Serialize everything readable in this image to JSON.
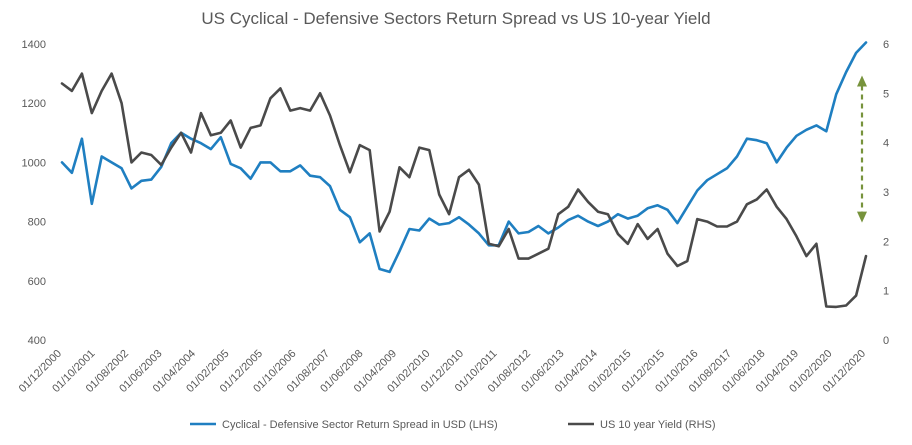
{
  "chart_data": {
    "type": "line",
    "title": "US Cyclical - Defensive Sectors Return Spread vs US 10-year Yield",
    "x_ticks": [
      "01/12/2000",
      "01/10/2001",
      "01/08/2002",
      "01/06/2003",
      "01/04/2004",
      "01/02/2005",
      "01/12/2005",
      "01/10/2006",
      "01/08/2007",
      "01/06/2008",
      "01/04/2009",
      "01/02/2010",
      "01/12/2010",
      "01/10/2011",
      "01/08/2012",
      "01/06/2013",
      "01/04/2014",
      "01/02/2015",
      "01/12/2015",
      "01/10/2016",
      "01/08/2017",
      "01/06/2018",
      "01/04/2019",
      "01/02/2020",
      "01/12/2020"
    ],
    "y_left": {
      "min": 400,
      "max": 1400,
      "ticks": [
        "400",
        "600",
        "800",
        "1000",
        "1200",
        "1400"
      ]
    },
    "y_right": {
      "min": 0,
      "max": 6,
      "ticks": [
        "0",
        "1",
        "2",
        "3",
        "4",
        "5",
        "6"
      ]
    },
    "series": [
      {
        "name": "Cyclical - Defensive Sector Return Spread in USD (LHS)",
        "axis": "left",
        "color": "#1f7fc1",
        "values": [
          1000,
          965,
          1080,
          860,
          1020,
          1000,
          980,
          912,
          938,
          942,
          985,
          1065,
          1100,
          1080,
          1065,
          1045,
          1085,
          995,
          980,
          945,
          1000,
          1000,
          970,
          970,
          990,
          955,
          950,
          920,
          840,
          815,
          730,
          760,
          640,
          630,
          700,
          775,
          770,
          810,
          790,
          795,
          815,
          790,
          760,
          720,
          720,
          800,
          760,
          765,
          785,
          760,
          780,
          805,
          820,
          800,
          785,
          800,
          825,
          810,
          820,
          845,
          855,
          840,
          795,
          850,
          905,
          940,
          960,
          980,
          1020,
          1080,
          1075,
          1065,
          1000,
          1050,
          1090,
          1110,
          1125,
          1105,
          1230,
          1305,
          1370,
          1405
        ]
      },
      {
        "name": "US 10 year Yield (RHS)",
        "axis": "right",
        "color": "#4a4a4a",
        "values": [
          5.2,
          5.05,
          5.4,
          4.6,
          5.05,
          5.4,
          4.8,
          3.6,
          3.8,
          3.75,
          3.55,
          3.9,
          4.2,
          3.8,
          4.6,
          4.15,
          4.2,
          4.45,
          3.9,
          4.3,
          4.35,
          4.9,
          5.1,
          4.65,
          4.7,
          4.65,
          5.0,
          4.55,
          3.95,
          3.4,
          3.95,
          3.85,
          2.2,
          2.6,
          3.5,
          3.3,
          3.9,
          3.85,
          2.95,
          2.55,
          3.3,
          3.45,
          3.15,
          1.95,
          1.9,
          2.25,
          1.65,
          1.65,
          1.75,
          1.85,
          2.55,
          2.7,
          3.05,
          2.8,
          2.6,
          2.55,
          2.15,
          1.95,
          2.35,
          2.05,
          2.25,
          1.75,
          1.5,
          1.6,
          2.45,
          2.4,
          2.3,
          2.3,
          2.4,
          2.75,
          2.85,
          3.05,
          2.7,
          2.45,
          2.1,
          1.7,
          1.95,
          0.68,
          0.67,
          0.7,
          0.9,
          1.7
        ]
      }
    ],
    "legend": {
      "position": "bottom"
    },
    "annotation": {
      "type": "double-arrow",
      "style": "dashed",
      "color": "#77933c",
      "y_left_from": 1290,
      "y_left_to": 800
    }
  }
}
